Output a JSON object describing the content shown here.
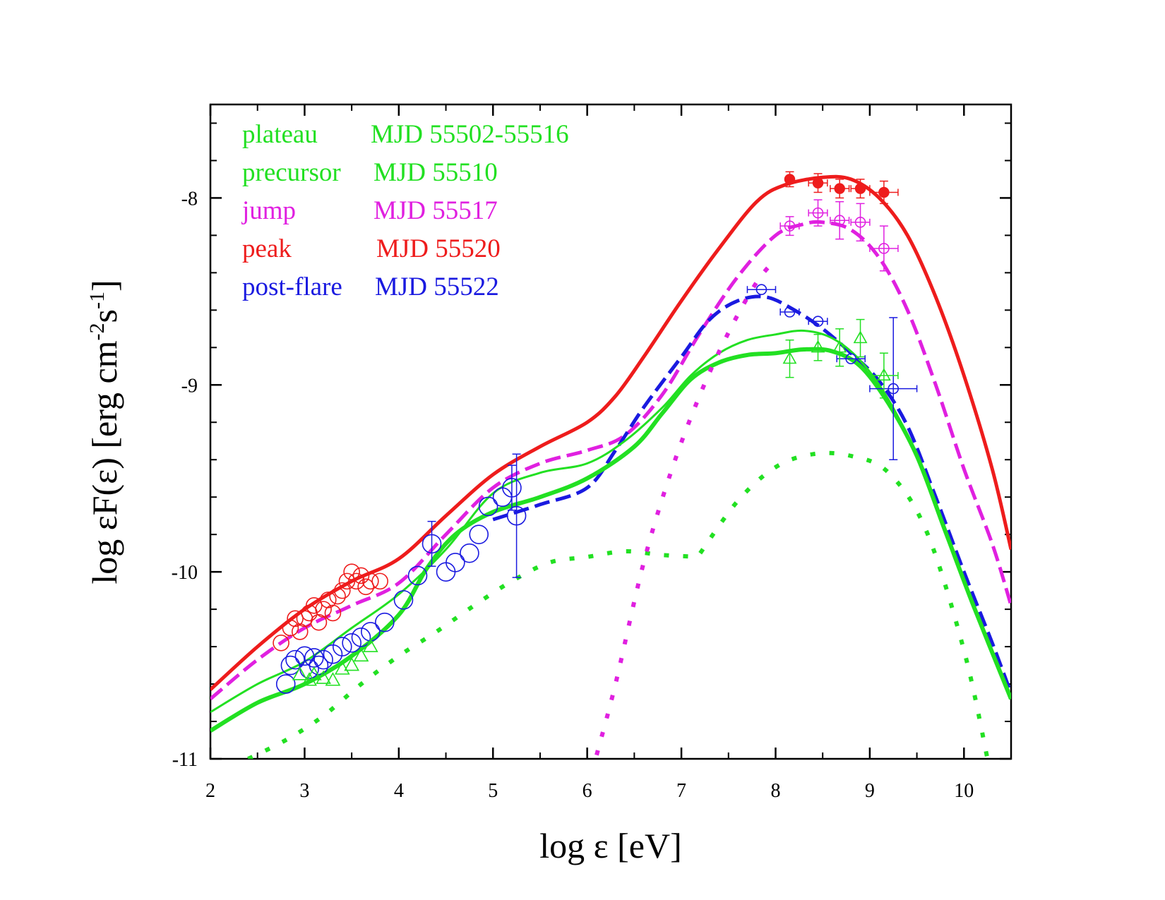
{
  "chart_data": {
    "type": "scatter",
    "title": "",
    "xlabel": "log ε [eV]",
    "ylabel_main": "log εF(ε) [erg cm",
    "ylabel_exp1": "-2",
    "ylabel_mid": "s",
    "ylabel_exp2": "-1",
    "ylabel_end": "]",
    "xlim": [
      2,
      10.5
    ],
    "ylim": [
      -11,
      -7.5
    ],
    "x_ticks": [
      2,
      3,
      4,
      5,
      6,
      7,
      8,
      9,
      10
    ],
    "x_tick_labels": [
      "2",
      "3",
      "4",
      "5",
      "6",
      "7",
      "8",
      "9",
      "10"
    ],
    "y_ticks": [
      -11,
      -10,
      -9,
      -8
    ],
    "y_tick_labels": [
      "-11",
      "-10",
      "-9",
      "-8"
    ],
    "grid": false,
    "colors": {
      "green": "#22e022",
      "magenta": "#e020e0",
      "red": "#ee1c1c",
      "blue": "#1a1ae0"
    },
    "legend": [
      {
        "label": "plateau",
        "period": "MJD 55502-55516",
        "color": "#22e022"
      },
      {
        "label": "precursor",
        "period": "MJD 55510",
        "color": "#22e022"
      },
      {
        "label": "jump",
        "period": "MJD 55517",
        "color": "#e020e0"
      },
      {
        "label": "peak",
        "period": "MJD 55520",
        "color": "#ee1c1c"
      },
      {
        "label": "post-flare",
        "period": "MJD 55522",
        "color": "#1a1ae0"
      }
    ],
    "model_curves": [
      {
        "name": "peak model (red solid)",
        "color": "#ee1c1c",
        "style": "solid",
        "width": 5,
        "x": [
          2.0,
          2.5,
          3.0,
          3.5,
          4.0,
          4.5,
          5.0,
          5.5,
          6.0,
          6.3,
          6.6,
          7.0,
          7.4,
          7.8,
          8.1,
          8.5,
          8.8,
          9.1,
          9.4,
          9.7,
          10.0,
          10.3,
          10.5
        ],
        "y": [
          -10.63,
          -10.4,
          -10.2,
          -10.05,
          -9.93,
          -9.7,
          -9.48,
          -9.33,
          -9.2,
          -9.06,
          -8.85,
          -8.55,
          -8.27,
          -8.02,
          -7.93,
          -7.89,
          -7.9,
          -8.0,
          -8.2,
          -8.53,
          -8.95,
          -9.45,
          -9.88
        ]
      },
      {
        "name": "jump model (magenta dashed)",
        "color": "#e020e0",
        "style": "dashed",
        "width": 5,
        "x": [
          2.0,
          2.5,
          3.0,
          3.5,
          4.0,
          4.5,
          5.0,
          5.5,
          6.0,
          6.4,
          6.8,
          7.2,
          7.6,
          8.0,
          8.3,
          8.5,
          8.8,
          9.1,
          9.4,
          9.7,
          10.0,
          10.3,
          10.5
        ],
        "y": [
          -10.68,
          -10.47,
          -10.3,
          -10.18,
          -10.06,
          -9.8,
          -9.55,
          -9.42,
          -9.35,
          -9.27,
          -9.05,
          -8.72,
          -8.42,
          -8.2,
          -8.14,
          -8.13,
          -8.17,
          -8.32,
          -8.6,
          -9.0,
          -9.45,
          -9.85,
          -10.18
        ]
      },
      {
        "name": "post-flare model (blue dashed)",
        "color": "#1a1ae0",
        "style": "dashed",
        "width": 5,
        "x": [
          5.0,
          5.5,
          6.0,
          6.3,
          6.6,
          7.0,
          7.3,
          7.6,
          7.9,
          8.2,
          8.5,
          8.8,
          9.1,
          9.4,
          9.7,
          10.0,
          10.3,
          10.5
        ],
        "y": [
          -9.72,
          -9.64,
          -9.55,
          -9.35,
          -9.12,
          -8.85,
          -8.65,
          -8.55,
          -8.53,
          -8.6,
          -8.7,
          -8.83,
          -8.98,
          -9.22,
          -9.6,
          -10.0,
          -10.38,
          -10.65
        ]
      },
      {
        "name": "precursor model (green thin)",
        "color": "#22e022",
        "style": "solid",
        "width": 3,
        "x": [
          2.0,
          2.5,
          3.0,
          3.5,
          4.0,
          4.5,
          5.0,
          5.5,
          6.0,
          6.4,
          6.8,
          7.1,
          7.4,
          7.7,
          8.0,
          8.3,
          8.6,
          8.9,
          9.2,
          9.5,
          9.8,
          10.1,
          10.5
        ],
        "y": [
          -10.75,
          -10.6,
          -10.48,
          -10.3,
          -10.12,
          -9.88,
          -9.58,
          -9.47,
          -9.42,
          -9.3,
          -9.12,
          -8.95,
          -8.83,
          -8.76,
          -8.73,
          -8.71,
          -8.75,
          -8.87,
          -9.08,
          -9.38,
          -9.77,
          -10.17,
          -10.68
        ]
      },
      {
        "name": "plateau model (green thick)",
        "color": "#22e022",
        "style": "solid",
        "width": 6,
        "x": [
          2.0,
          2.5,
          3.0,
          3.5,
          4.0,
          4.3,
          4.6,
          5.0,
          5.5,
          6.0,
          6.5,
          6.8,
          7.1,
          7.4,
          7.7,
          8.0,
          8.3,
          8.6,
          8.9,
          9.2,
          9.5,
          9.8,
          10.1,
          10.5
        ],
        "y": [
          -10.85,
          -10.7,
          -10.6,
          -10.45,
          -10.23,
          -9.98,
          -9.8,
          -9.68,
          -9.6,
          -9.5,
          -9.33,
          -9.15,
          -8.97,
          -8.88,
          -8.84,
          -8.83,
          -8.81,
          -8.82,
          -8.9,
          -9.1,
          -9.38,
          -9.78,
          -10.18,
          -10.68
        ]
      },
      {
        "name": "plateau synchrotron component (green dotted)",
        "color": "#22e022",
        "style": "dotted",
        "width": 6,
        "x": [
          2.4,
          2.8,
          3.2,
          3.6,
          4.0,
          4.4,
          4.8,
          5.2,
          5.6,
          6.0,
          6.4,
          6.8,
          7.2
        ],
        "y": [
          -11.0,
          -10.9,
          -10.77,
          -10.6,
          -10.45,
          -10.32,
          -10.18,
          -10.05,
          -9.95,
          -9.92,
          -9.89,
          -9.91,
          -9.92
        ]
      },
      {
        "name": "plateau IC component (green dotted)",
        "color": "#22e022",
        "style": "dotted",
        "width": 6,
        "x": [
          7.2,
          7.6,
          8.0,
          8.4,
          8.8,
          9.2,
          9.6,
          10.0,
          10.25
        ],
        "y": [
          -9.9,
          -9.62,
          -9.44,
          -9.37,
          -9.38,
          -9.47,
          -9.78,
          -10.42,
          -11.0
        ]
      },
      {
        "name": "jump IC component (magenta dotted)",
        "color": "#e020e0",
        "style": "dotted",
        "width": 6,
        "x": [
          6.1,
          6.3,
          6.6,
          6.9,
          7.2,
          7.5,
          7.8,
          8.0
        ],
        "y": [
          -10.98,
          -10.6,
          -9.95,
          -9.45,
          -9.05,
          -8.72,
          -8.45,
          -8.33
        ]
      }
    ],
    "data_points": [
      {
        "series": "peak SED",
        "color": "#ee1c1c",
        "marker": "circle-filled",
        "size": 7,
        "points": [
          [
            8.15,
            -7.9,
            0.0,
            0.04
          ],
          [
            8.45,
            -7.92,
            0.1,
            0.05
          ],
          [
            8.68,
            -7.95,
            0.1,
            0.05
          ],
          [
            8.9,
            -7.95,
            0.1,
            0.05
          ],
          [
            9.15,
            -7.97,
            0.15,
            0.06
          ]
        ]
      },
      {
        "series": "jump SED",
        "color": "#e020e0",
        "marker": "circle-open",
        "size": 7,
        "points": [
          [
            8.15,
            -8.15,
            0.1,
            0.05
          ],
          [
            8.45,
            -8.08,
            0.1,
            0.07
          ],
          [
            8.68,
            -8.12,
            0.1,
            0.1
          ],
          [
            8.9,
            -8.13,
            0.1,
            0.1
          ],
          [
            9.15,
            -8.27,
            0.15,
            0.12
          ]
        ]
      },
      {
        "series": "post-flare SED (Fermi)",
        "color": "#1a1ae0",
        "marker": "circle-open",
        "size": 7,
        "points": [
          [
            7.85,
            -8.49,
            0.15,
            0.0
          ],
          [
            8.15,
            -8.61,
            0.1,
            0.0
          ],
          [
            8.45,
            -8.66,
            0.1,
            0.0
          ],
          [
            8.8,
            -8.86,
            0.15,
            0.0
          ],
          [
            9.25,
            -9.02,
            0.25,
            0.38
          ]
        ]
      },
      {
        "series": "precursor SED (Fermi)",
        "color": "#22e022",
        "marker": "triangle-open",
        "size": 9,
        "points": [
          [
            8.15,
            -8.86,
            0.0,
            0.1
          ],
          [
            8.45,
            -8.8,
            0.0,
            0.07
          ],
          [
            8.68,
            -8.8,
            0.0,
            0.1
          ],
          [
            8.9,
            -8.75,
            0.0,
            0.1
          ],
          [
            9.15,
            -8.95,
            0.15,
            0.12
          ]
        ]
      },
      {
        "series": "peak X-ray/UV",
        "color": "#ee1c1c",
        "marker": "circle-open",
        "size": 11,
        "points": [
          [
            2.75,
            -10.38,
            0,
            0
          ],
          [
            2.85,
            -10.3,
            0,
            0
          ],
          [
            2.9,
            -10.25,
            0,
            0
          ],
          [
            2.95,
            -10.32,
            0,
            0
          ],
          [
            3.0,
            -10.25,
            0,
            0
          ],
          [
            3.05,
            -10.22,
            0,
            0
          ],
          [
            3.1,
            -10.18,
            0,
            0
          ],
          [
            3.15,
            -10.27,
            0,
            0
          ],
          [
            3.2,
            -10.2,
            0,
            0
          ],
          [
            3.25,
            -10.15,
            0,
            0
          ],
          [
            3.3,
            -10.22,
            0,
            0
          ],
          [
            3.35,
            -10.13,
            0,
            0
          ],
          [
            3.4,
            -10.1,
            0,
            0
          ],
          [
            3.45,
            -10.05,
            0,
            0
          ],
          [
            3.5,
            -10.0,
            0,
            0
          ],
          [
            3.55,
            -10.05,
            0,
            0
          ],
          [
            3.6,
            -10.02,
            0,
            0
          ],
          [
            3.65,
            -10.08,
            0,
            0
          ],
          [
            3.7,
            -10.05,
            0,
            0
          ],
          [
            3.8,
            -10.05,
            0,
            0
          ]
        ]
      },
      {
        "series": "post-flare X-ray/UV",
        "color": "#1a1ae0",
        "marker": "circle-open",
        "size": 13,
        "points": [
          [
            2.8,
            -10.6,
            0,
            0
          ],
          [
            2.85,
            -10.5,
            0,
            0
          ],
          [
            2.9,
            -10.47,
            0,
            0
          ],
          [
            3.0,
            -10.45,
            0,
            0
          ],
          [
            3.05,
            -10.52,
            0,
            0
          ],
          [
            3.1,
            -10.46,
            0,
            0
          ],
          [
            3.15,
            -10.5,
            0,
            0
          ],
          [
            3.2,
            -10.47,
            0,
            0
          ],
          [
            3.3,
            -10.44,
            0,
            0
          ],
          [
            3.4,
            -10.4,
            0,
            0
          ],
          [
            3.5,
            -10.38,
            0,
            0
          ],
          [
            3.6,
            -10.35,
            0,
            0
          ],
          [
            3.7,
            -10.32,
            0,
            0
          ],
          [
            3.85,
            -10.27,
            0,
            0
          ],
          [
            4.05,
            -10.15,
            0,
            0
          ],
          [
            4.2,
            -10.02,
            0,
            0
          ],
          [
            4.35,
            -9.85,
            0,
            0.12
          ],
          [
            4.5,
            -10.0,
            0,
            0
          ],
          [
            4.6,
            -9.95,
            0,
            0
          ],
          [
            4.75,
            -9.9,
            0,
            0
          ],
          [
            4.85,
            -9.8,
            0,
            0
          ],
          [
            4.95,
            -9.65,
            0,
            0
          ],
          [
            5.1,
            -9.6,
            0,
            0
          ],
          [
            5.2,
            -9.55,
            0,
            0.12
          ],
          [
            5.25,
            -9.7,
            0,
            0.33
          ]
        ]
      },
      {
        "series": "precursor X-ray",
        "color": "#22e022",
        "marker": "triangle-open",
        "size": 10,
        "points": [
          [
            2.95,
            -10.55,
            0,
            0
          ],
          [
            3.05,
            -10.58,
            0,
            0
          ],
          [
            3.1,
            -10.55,
            0,
            0
          ],
          [
            3.2,
            -10.57,
            0,
            0
          ],
          [
            3.3,
            -10.58,
            0,
            0
          ],
          [
            3.4,
            -10.52,
            0,
            0
          ],
          [
            3.5,
            -10.5,
            0,
            0
          ],
          [
            3.6,
            -10.45,
            0,
            0
          ],
          [
            3.7,
            -10.4,
            0,
            0
          ]
        ]
      }
    ]
  }
}
